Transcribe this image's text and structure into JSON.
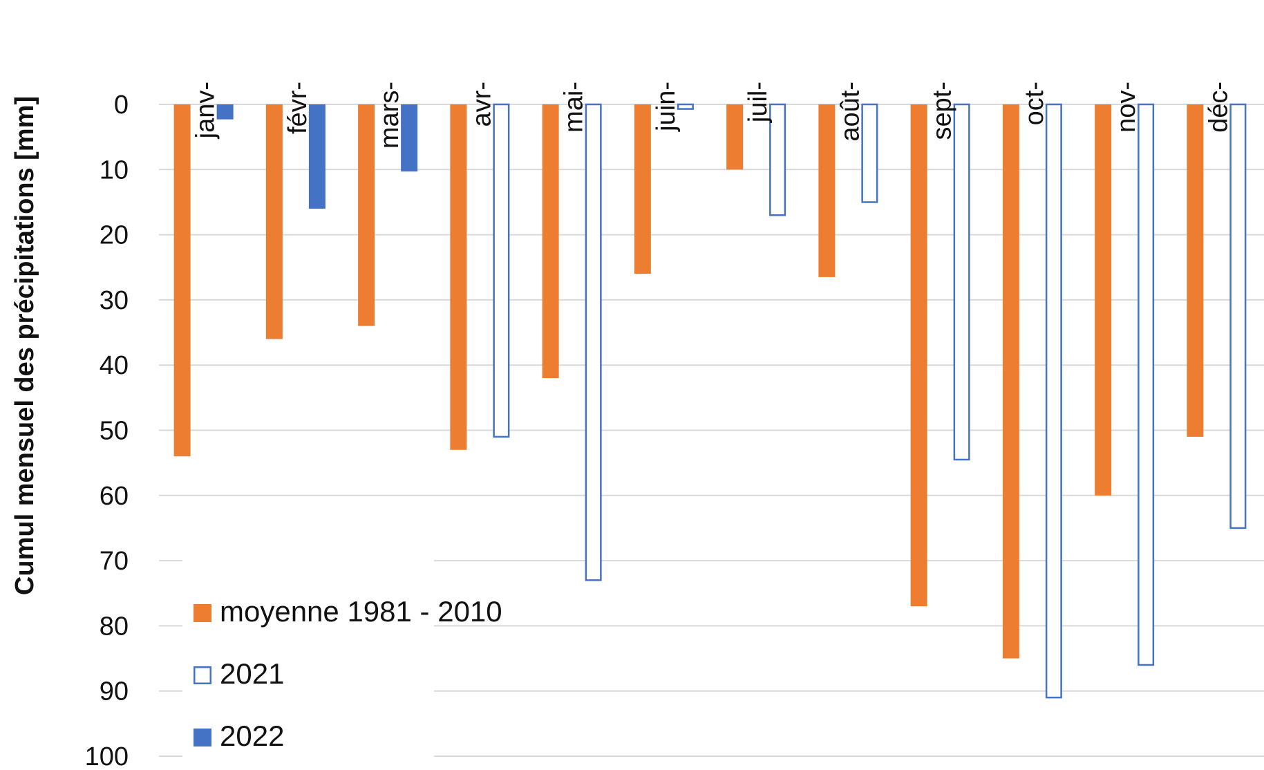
{
  "chart_data": {
    "type": "bar",
    "orientation": "inverted",
    "ylabel": "Cumul mensuel des précipitations [mm]",
    "ylim": [
      0,
      100
    ],
    "yticks": [
      0,
      10,
      20,
      30,
      40,
      50,
      60,
      70,
      80,
      90,
      100
    ],
    "categories": [
      "janv-",
      "févr-",
      "mars-",
      "avr-",
      "mai-",
      "juin-",
      "juil-",
      "août-",
      "sept-",
      "oct-",
      "nov-",
      "déc-"
    ],
    "grid": true,
    "legend_position": "bottom-left",
    "series": [
      {
        "name": "moyenne 1981 - 2010",
        "color": "#ed7d31",
        "style": "filled",
        "values": [
          54,
          36,
          34,
          53,
          42,
          26,
          10,
          26.5,
          77,
          85,
          60,
          51
        ]
      },
      {
        "name": "2021",
        "color": "#4472c4",
        "style": "outline",
        "values": [
          null,
          null,
          null,
          51,
          73,
          0.7,
          17,
          15,
          54.5,
          91,
          86,
          65
        ]
      },
      {
        "name": "2022",
        "color": "#4472c4",
        "style": "filled",
        "values": [
          2.3,
          16,
          10.3,
          null,
          null,
          null,
          null,
          null,
          null,
          null,
          null,
          null
        ]
      }
    ]
  }
}
